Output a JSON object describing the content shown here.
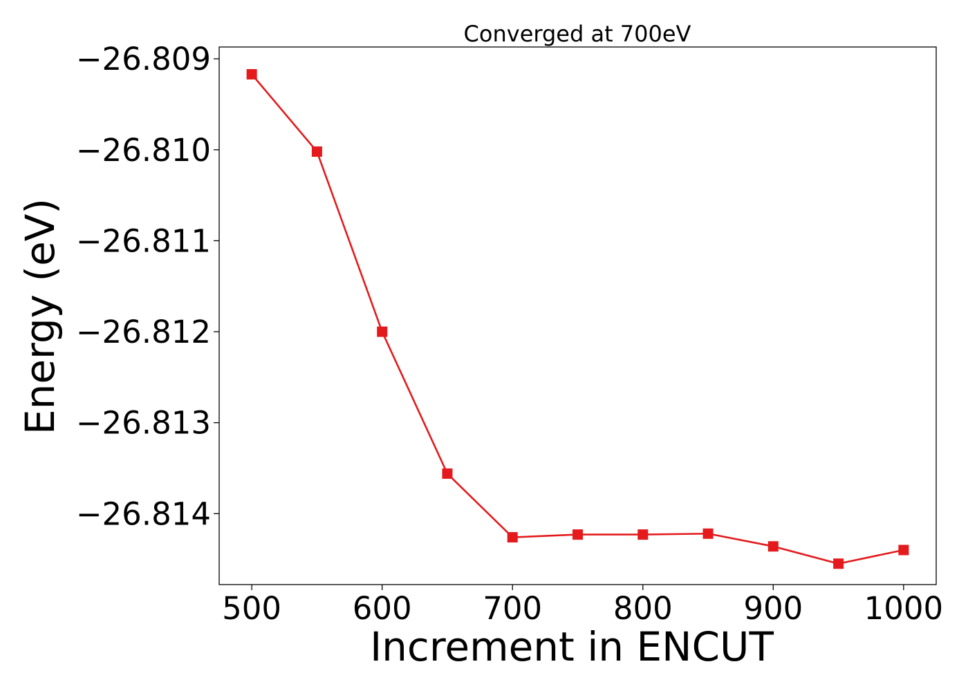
{
  "chart_data": {
    "type": "line",
    "title": "Converged at 700eV",
    "xlabel": "Increment in ENCUT",
    "ylabel": "Energy (eV)",
    "xlim": [
      475,
      1025
    ],
    "ylim": [
      -26.81478,
      -26.80887
    ],
    "xticks": [
      500,
      600,
      700,
      800,
      900,
      1000
    ],
    "xtick_labels": [
      "500",
      "600",
      "700",
      "800",
      "900",
      "1000"
    ],
    "yticks": [
      -26.809,
      -26.81,
      -26.811,
      -26.812,
      -26.813,
      -26.814
    ],
    "ytick_labels": [
      "−26.809",
      "−26.810",
      "−26.811",
      "−26.812",
      "−26.813",
      "−26.814"
    ],
    "grid": false,
    "legend": "none",
    "series": [
      {
        "color": "#e41a1c",
        "marker": "square",
        "x": [
          500,
          550,
          600,
          650,
          700,
          750,
          800,
          850,
          900,
          950,
          1000
        ],
        "y": [
          -26.80917,
          -26.81002,
          -26.812,
          -26.81356,
          -26.81426,
          -26.81423,
          -26.81423,
          -26.81422,
          -26.81436,
          -26.81455,
          -26.8144
        ]
      }
    ]
  }
}
